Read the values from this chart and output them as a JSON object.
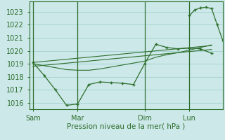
{
  "background_color": "#cce8e8",
  "grid_color": "#99cccc",
  "line_color": "#2d6e2d",
  "axis_color": "#2d6e2d",
  "text_color": "#2d6e2d",
  "xlabel": "Pression niveau de la mer( hPa )",
  "ylim": [
    1015.5,
    1023.8
  ],
  "yticks": [
    1016,
    1017,
    1018,
    1019,
    1020,
    1021,
    1022,
    1023
  ],
  "day_labels": [
    "Sam",
    "Mar",
    "Dim",
    "Lun"
  ],
  "day_positions": [
    0,
    24,
    60,
    84
  ],
  "xlim": [
    -2,
    102
  ],
  "vlines_x": [
    0,
    24,
    60,
    84
  ],
  "series1_x": [
    0,
    6,
    12,
    18,
    24,
    30,
    36,
    42,
    48,
    54,
    60,
    66,
    72,
    78,
    84,
    90,
    96
  ],
  "series1_y": [
    1019.1,
    1018.1,
    1017.0,
    1015.8,
    1015.9,
    1017.4,
    1017.6,
    1017.55,
    1017.5,
    1017.4,
    1019.0,
    1020.5,
    1020.25,
    1020.15,
    1020.2,
    1020.15,
    1019.8
  ],
  "series2_x": [
    0,
    96
  ],
  "series2_y": [
    1019.1,
    1020.4
  ],
  "series3_x": [
    0,
    96
  ],
  "series3_y": [
    1018.8,
    1020.1
  ],
  "series4_x": [
    0,
    6,
    12,
    18,
    24,
    30,
    36,
    42,
    48,
    54,
    60,
    66,
    72,
    78,
    84,
    90,
    96
  ],
  "series4_y": [
    1019.0,
    1018.85,
    1018.7,
    1018.55,
    1018.5,
    1018.5,
    1018.6,
    1018.75,
    1018.9,
    1019.05,
    1019.2,
    1019.5,
    1019.7,
    1019.85,
    1020.05,
    1020.25,
    1020.45
  ],
  "series5_x": [
    84,
    87,
    90,
    93,
    96,
    99,
    102
  ],
  "series5_y": [
    1022.7,
    1023.15,
    1023.3,
    1023.35,
    1023.25,
    1022.0,
    1020.8
  ]
}
